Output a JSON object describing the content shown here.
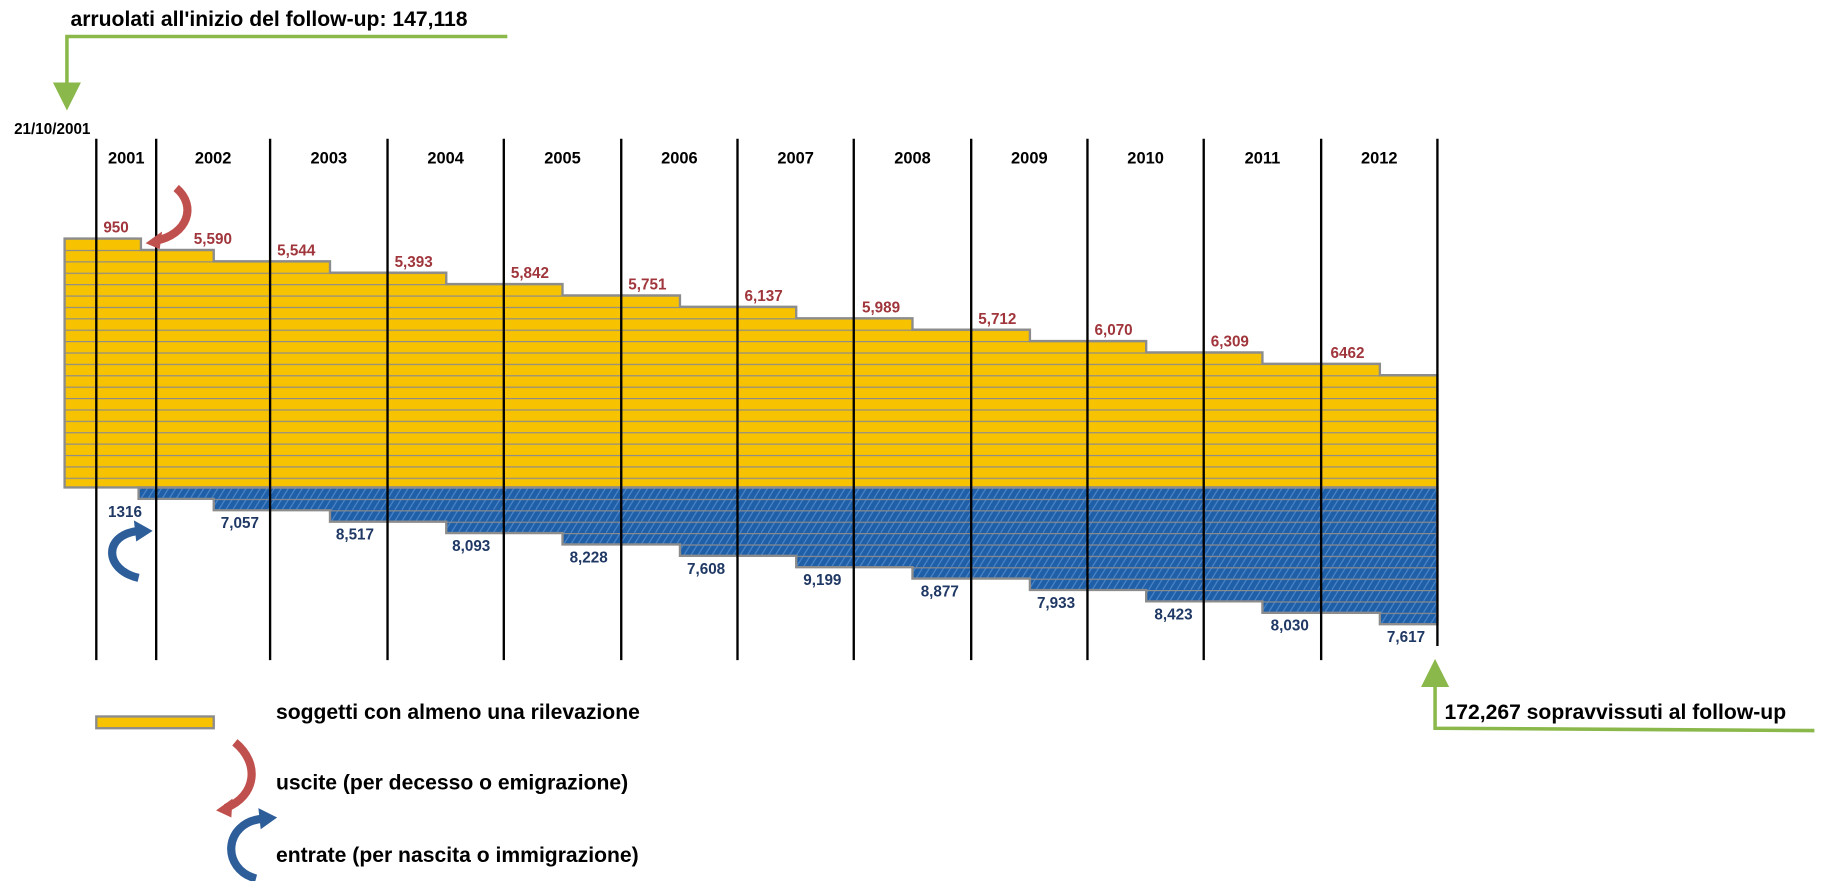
{
  "annotations": {
    "start": "arruolati all'inizio del follow-up: 147,118",
    "start_date": "21/10/2001",
    "end": "172,267 sopravvissuti al follow-up"
  },
  "years": [
    "2001",
    "2002",
    "2003",
    "2004",
    "2005",
    "2006",
    "2007",
    "2008",
    "2009",
    "2010",
    "2011",
    "2012"
  ],
  "exits": [
    "950",
    "5,590",
    "5,544",
    "5,393",
    "5,842",
    "5,751",
    "6,137",
    "5,989",
    "5,712",
    "6,070",
    "6,309",
    "6462"
  ],
  "entries": [
    "1316",
    "7,057",
    "8,517",
    "8,093",
    "8,228",
    "7,608",
    "9,199",
    "8,877",
    "7,933",
    "8,423",
    "8,030",
    "7,617"
  ],
  "legend": [
    "soggetti con almeno una rilevazione",
    "uscite (per decesso o emigrazione)",
    "entrate (per nascita o immigrazione)"
  ]
}
